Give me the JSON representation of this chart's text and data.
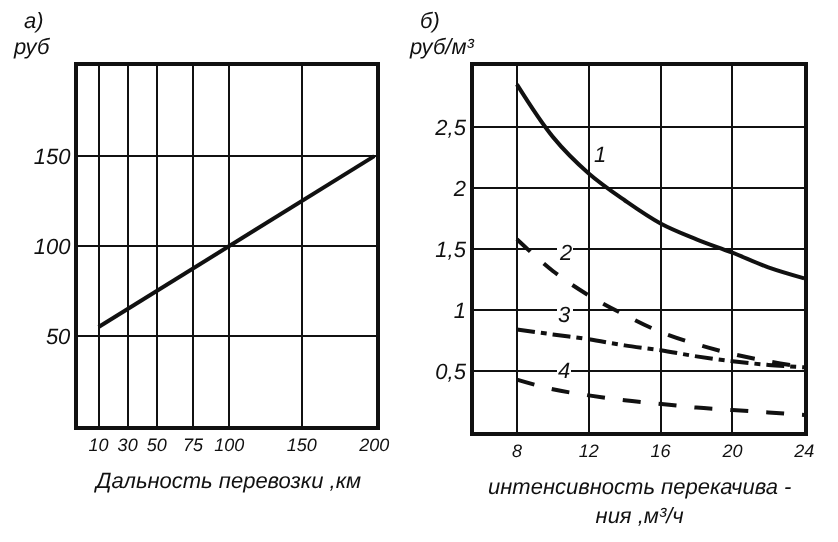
{
  "chart_data": [
    {
      "type": "line",
      "title": "а)",
      "ylabel": "руб",
      "xlabel": "Дальность перевозки ,км",
      "x": [
        10,
        200
      ],
      "series": [
        {
          "color": "#111111",
          "values": [
            55,
            150
          ],
          "line_style": "solid"
        }
      ],
      "xlim": [
        -4,
        201
      ],
      "xticks": [
        10,
        30,
        50,
        75,
        100,
        150,
        200
      ],
      "ylim": [
        0,
        200
      ],
      "yticks": [
        50,
        100,
        150
      ],
      "grid": true
    },
    {
      "type": "line",
      "title": "б)",
      "ylabel": "руб/м³",
      "xlabel": "интенсивность перекачива -\nния ,м³/ч",
      "x": [
        8,
        10,
        12,
        14,
        16,
        18,
        20,
        22,
        24
      ],
      "series": [
        {
          "name": "1",
          "color": "#111111",
          "line_style": "solid",
          "values": [
            2.85,
            2.42,
            2.12,
            1.9,
            1.71,
            1.58,
            1.47,
            1.35,
            1.26
          ]
        },
        {
          "name": "2",
          "color": "#111111",
          "line_style": "dashed",
          "values": [
            1.58,
            1.32,
            1.12,
            0.96,
            0.82,
            0.72,
            0.64,
            0.58,
            0.53
          ]
        },
        {
          "name": "3",
          "color": "#111111",
          "line_style": "dashdot",
          "values": [
            0.84,
            0.8,
            0.76,
            0.71,
            0.67,
            0.62,
            0.58,
            0.55,
            0.53
          ]
        },
        {
          "name": "4",
          "color": "#111111",
          "line_style": "dashed",
          "values": [
            0.43,
            0.35,
            0.3,
            0.26,
            0.23,
            0.2,
            0.18,
            0.16,
            0.14
          ]
        }
      ],
      "xlim": [
        5.6,
        24
      ],
      "xticks": [
        8,
        12,
        16,
        20,
        24
      ],
      "ylim": [
        0,
        3
      ],
      "yticks": [
        {
          "value": 0.5,
          "label": "0,5"
        },
        1,
        {
          "value": 1.5,
          "label": "1,5"
        },
        2,
        {
          "value": 2.5,
          "label": "2,5"
        }
      ],
      "grid": true
    }
  ]
}
